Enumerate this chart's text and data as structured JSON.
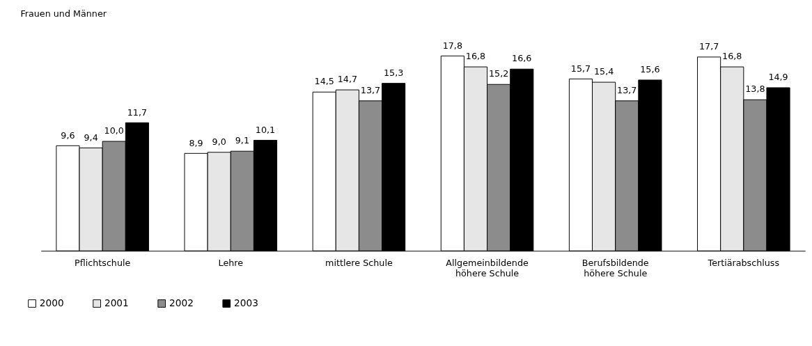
{
  "chart_data": {
    "type": "bar",
    "title": "Frauen und Männer",
    "categories": [
      "Pflichtschule",
      "Lehre",
      "mittlere Schule",
      "Allgemeinbildende höhere Schule",
      "Berufsbildende höhere Schule",
      "Tertiärabschluss"
    ],
    "series": [
      {
        "name": "2000",
        "color": "#ffffff",
        "values": [
          9.6,
          8.9,
          14.5,
          17.8,
          15.7,
          17.7
        ],
        "value_labels": [
          "9,6",
          "8,9",
          "14,5",
          "17,8",
          "15,7",
          "17,7"
        ]
      },
      {
        "name": "2001",
        "color": "#e6e6e6",
        "values": [
          9.4,
          9.0,
          14.7,
          16.8,
          15.4,
          16.8
        ],
        "value_labels": [
          "9,4",
          "9,0",
          "14,7",
          "16,8",
          "15,4",
          "16,8"
        ]
      },
      {
        "name": "2002",
        "color": "#8c8c8c",
        "values": [
          10.0,
          9.1,
          13.7,
          15.2,
          13.7,
          13.8
        ],
        "value_labels": [
          "10,0",
          "9,1",
          "13,7",
          "15,2",
          "13,7",
          "13,8"
        ]
      },
      {
        "name": "2003",
        "color": "#000000",
        "values": [
          11.7,
          10.1,
          15.3,
          16.6,
          15.6,
          14.9
        ],
        "value_labels": [
          "11,7",
          "10,1",
          "15,3",
          "16,6",
          "15,6",
          "14,9"
        ]
      }
    ],
    "grid": false,
    "legend": "bottom left"
  }
}
